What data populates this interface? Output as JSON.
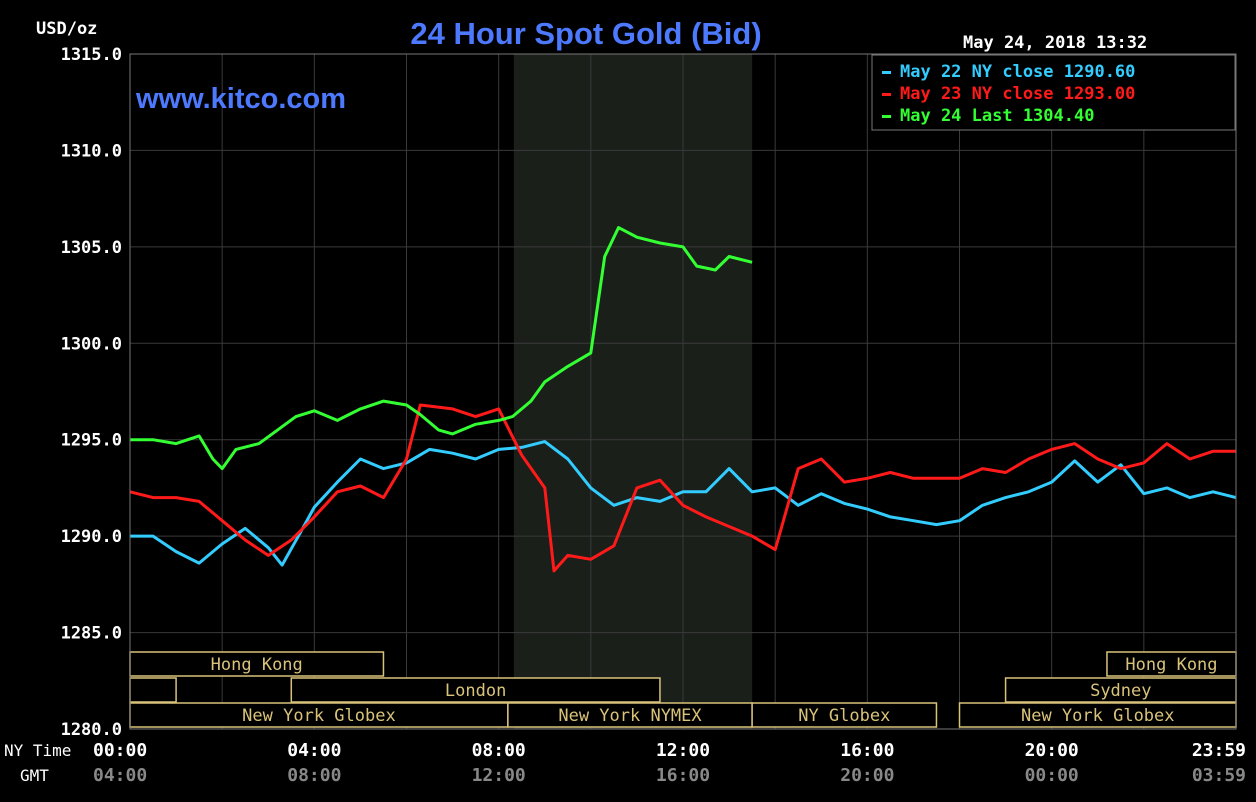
{
  "header": {
    "unit": "USD/oz",
    "title": "24 Hour Spot Gold (Bid)",
    "site": "www.kitco.com",
    "timestamp": "May 24, 2018 13:32"
  },
  "legend": [
    {
      "label": "May 22 NY close 1290.60",
      "color": "#33ccff"
    },
    {
      "label": "May 23 NY close 1293.00",
      "color": "#ff1a1a"
    },
    {
      "label": "May 24 Last 1304.40",
      "color": "#33ff33"
    }
  ],
  "axis": {
    "y_ticks": [
      "1315.0",
      "1310.0",
      "1305.0",
      "1300.0",
      "1295.0",
      "1290.0",
      "1285.0",
      "1280.0"
    ],
    "ny_time_label": "NY Time",
    "gmt_label": "GMT",
    "x_ticks_ny": [
      "00:00",
      "04:00",
      "08:00",
      "12:00",
      "16:00",
      "20:00",
      "23:59"
    ],
    "x_ticks_gmt": [
      "04:00",
      "08:00",
      "12:00",
      "16:00",
      "20:00",
      "00:00",
      "03:59"
    ]
  },
  "sessions": [
    {
      "label": "Hong Kong",
      "start": 0.0,
      "end": 5.5,
      "row": 0
    },
    {
      "label": "Hong Kong",
      "start": 21.2,
      "end": 24.0,
      "row": 0
    },
    {
      "label": "London",
      "start": 3.5,
      "end": 11.5,
      "row": 1
    },
    {
      "label": "",
      "start": 0.0,
      "end": 1.0,
      "row": 1
    },
    {
      "label": "Sydney",
      "start": 19.0,
      "end": 24.0,
      "row": 1
    },
    {
      "label": "New York Globex",
      "start": 0.0,
      "end": 8.2,
      "row": 2
    },
    {
      "label": "New York NYMEX",
      "start": 8.2,
      "end": 13.5,
      "row": 2
    },
    {
      "label": "NY Globex",
      "start": 13.5,
      "end": 17.5,
      "row": 2
    },
    {
      "label": "New York Globex",
      "start": 18.0,
      "end": 24.0,
      "row": 2
    }
  ],
  "chart_data": {
    "type": "line",
    "title": "24 Hour Spot Gold (Bid)",
    "ylabel": "USD/oz",
    "xlabel": "NY Time",
    "xlim": [
      0,
      24
    ],
    "ylim": [
      1280,
      1315
    ],
    "grid": true,
    "legend_position": "top-right",
    "highlight_range": [
      8.33,
      13.5
    ],
    "series": [
      {
        "name": "May 22 NY close 1290.60",
        "color": "#33ccff",
        "points": [
          [
            0,
            1290.0
          ],
          [
            0.5,
            1290.0
          ],
          [
            1,
            1289.2
          ],
          [
            1.5,
            1288.6
          ],
          [
            2,
            1289.6
          ],
          [
            2.5,
            1290.4
          ],
          [
            3,
            1289.4
          ],
          [
            3.3,
            1288.5
          ],
          [
            3.7,
            1290.2
          ],
          [
            4,
            1291.5
          ],
          [
            4.5,
            1292.8
          ],
          [
            5,
            1294.0
          ],
          [
            5.5,
            1293.5
          ],
          [
            6,
            1293.8
          ],
          [
            6.5,
            1294.5
          ],
          [
            7,
            1294.3
          ],
          [
            7.5,
            1294.0
          ],
          [
            8,
            1294.5
          ],
          [
            8.5,
            1294.6
          ],
          [
            9,
            1294.9
          ],
          [
            9.5,
            1294.0
          ],
          [
            10,
            1292.5
          ],
          [
            10.5,
            1291.6
          ],
          [
            11,
            1292.0
          ],
          [
            11.5,
            1291.8
          ],
          [
            12,
            1292.3
          ],
          [
            12.5,
            1292.3
          ],
          [
            13,
            1293.5
          ],
          [
            13.5,
            1292.3
          ],
          [
            14,
            1292.5
          ],
          [
            14.5,
            1291.6
          ],
          [
            15,
            1292.2
          ],
          [
            15.5,
            1291.7
          ],
          [
            16,
            1291.4
          ],
          [
            16.5,
            1291.0
          ],
          [
            17,
            1290.8
          ],
          [
            17.5,
            1290.6
          ],
          [
            18,
            1290.8
          ],
          [
            18.5,
            1291.6
          ],
          [
            19,
            1292.0
          ],
          [
            19.5,
            1292.3
          ],
          [
            20,
            1292.8
          ],
          [
            20.5,
            1293.9
          ],
          [
            21,
            1292.8
          ],
          [
            21.5,
            1293.7
          ],
          [
            22,
            1292.2
          ],
          [
            22.5,
            1292.5
          ],
          [
            23,
            1292.0
          ],
          [
            23.5,
            1292.3
          ],
          [
            24,
            1292.0
          ]
        ]
      },
      {
        "name": "May 23 NY close 1293.00",
        "color": "#ff1a1a",
        "points": [
          [
            0,
            1292.3
          ],
          [
            0.5,
            1292.0
          ],
          [
            1,
            1292.0
          ],
          [
            1.5,
            1291.8
          ],
          [
            2,
            1290.8
          ],
          [
            2.5,
            1289.8
          ],
          [
            3,
            1289.0
          ],
          [
            3.5,
            1289.8
          ],
          [
            4,
            1291.0
          ],
          [
            4.5,
            1292.3
          ],
          [
            5,
            1292.6
          ],
          [
            5.5,
            1292.0
          ],
          [
            6,
            1294.0
          ],
          [
            6.3,
            1296.8
          ],
          [
            7,
            1296.6
          ],
          [
            7.5,
            1296.2
          ],
          [
            8,
            1296.6
          ],
          [
            8.5,
            1294.2
          ],
          [
            9,
            1292.5
          ],
          [
            9.2,
            1288.2
          ],
          [
            9.5,
            1289.0
          ],
          [
            10,
            1288.8
          ],
          [
            10.5,
            1289.5
          ],
          [
            11,
            1292.5
          ],
          [
            11.5,
            1292.9
          ],
          [
            12,
            1291.6
          ],
          [
            12.5,
            1291.0
          ],
          [
            13,
            1290.5
          ],
          [
            13.5,
            1290.0
          ],
          [
            14,
            1289.3
          ],
          [
            14.5,
            1293.5
          ],
          [
            15,
            1294.0
          ],
          [
            15.5,
            1292.8
          ],
          [
            16,
            1293.0
          ],
          [
            16.5,
            1293.3
          ],
          [
            17,
            1293.0
          ],
          [
            17.5,
            1293.0
          ],
          [
            18,
            1293.0
          ],
          [
            18.5,
            1293.5
          ],
          [
            19,
            1293.3
          ],
          [
            19.5,
            1294.0
          ],
          [
            20,
            1294.5
          ],
          [
            20.5,
            1294.8
          ],
          [
            21,
            1294.0
          ],
          [
            21.5,
            1293.5
          ],
          [
            22,
            1293.8
          ],
          [
            22.5,
            1294.8
          ],
          [
            23,
            1294.0
          ],
          [
            23.5,
            1294.4
          ],
          [
            24,
            1294.4
          ]
        ]
      },
      {
        "name": "May 24 Last 1304.40",
        "color": "#33ff33",
        "points": [
          [
            0,
            1295.0
          ],
          [
            0.5,
            1295.0
          ],
          [
            1,
            1294.8
          ],
          [
            1.5,
            1295.2
          ],
          [
            1.8,
            1294.0
          ],
          [
            2,
            1293.5
          ],
          [
            2.3,
            1294.5
          ],
          [
            2.8,
            1294.8
          ],
          [
            3.2,
            1295.5
          ],
          [
            3.6,
            1296.2
          ],
          [
            4,
            1296.5
          ],
          [
            4.5,
            1296.0
          ],
          [
            5,
            1296.6
          ],
          [
            5.5,
            1297.0
          ],
          [
            6,
            1296.8
          ],
          [
            6.3,
            1296.3
          ],
          [
            6.7,
            1295.5
          ],
          [
            7,
            1295.3
          ],
          [
            7.5,
            1295.8
          ],
          [
            8,
            1296.0
          ],
          [
            8.3,
            1296.2
          ],
          [
            8.7,
            1297.0
          ],
          [
            9,
            1298.0
          ],
          [
            9.5,
            1298.8
          ],
          [
            10,
            1299.5
          ],
          [
            10.3,
            1304.5
          ],
          [
            10.6,
            1306.0
          ],
          [
            11,
            1305.5
          ],
          [
            11.5,
            1305.2
          ],
          [
            12,
            1305.0
          ],
          [
            12.3,
            1304.0
          ],
          [
            12.7,
            1303.8
          ],
          [
            13,
            1304.5
          ],
          [
            13.5,
            1304.2
          ]
        ]
      }
    ]
  }
}
